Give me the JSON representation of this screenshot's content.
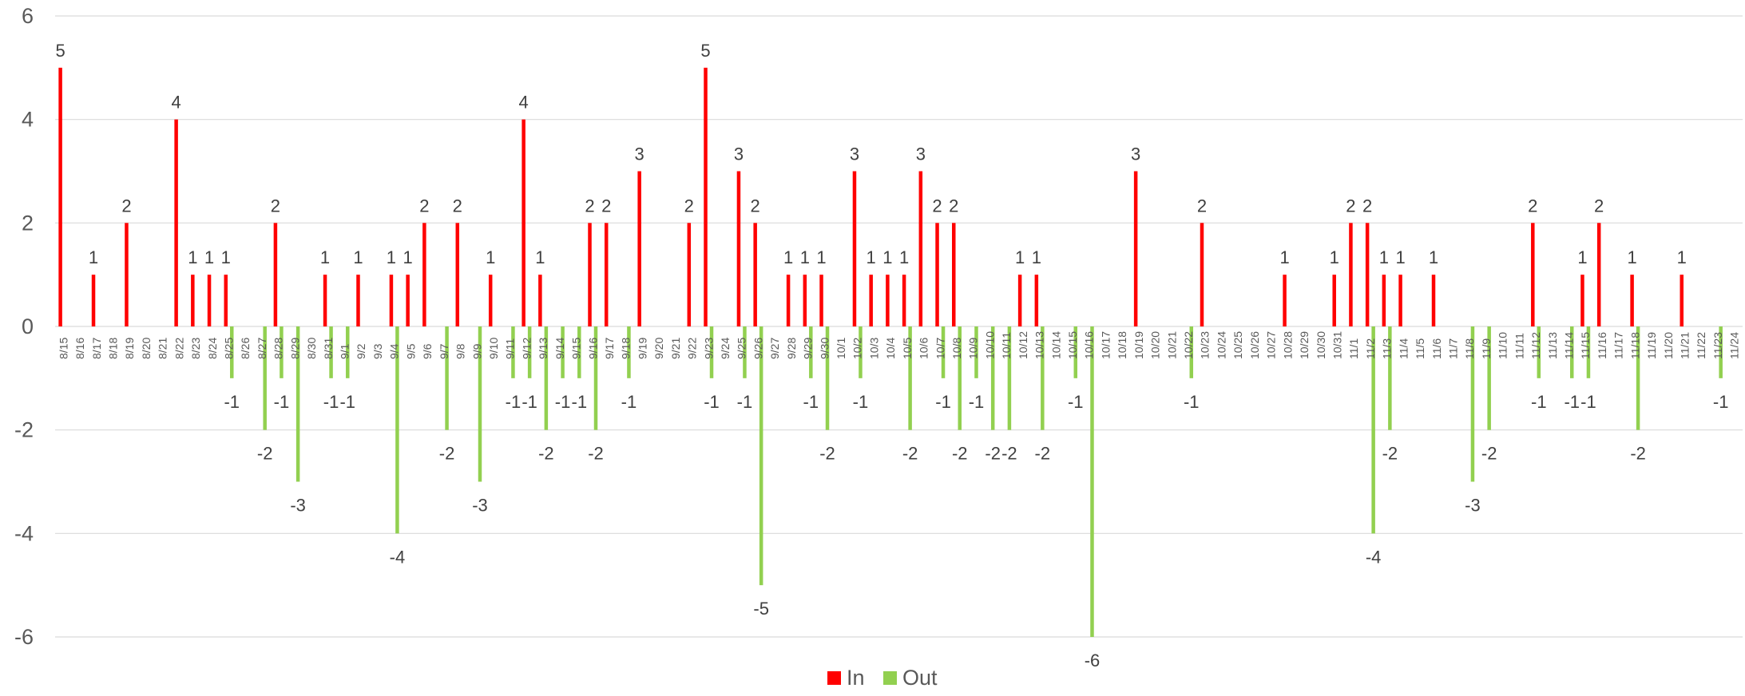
{
  "chart_data": {
    "type": "bar",
    "title": "",
    "xlabel": "",
    "ylabel": "",
    "ylim": [
      -6,
      6
    ],
    "yticks": [
      "6",
      "4",
      "2",
      "0",
      "-2",
      "-4",
      "-6"
    ],
    "grid": true,
    "legend": {
      "placement": "bottom",
      "entries": [
        "In",
        "Out"
      ]
    },
    "categories": [
      "8/15",
      "8/16",
      "8/17",
      "8/18",
      "8/19",
      "8/20",
      "8/21",
      "8/22",
      "8/23",
      "8/24",
      "8/25",
      "8/26",
      "8/27",
      "8/28",
      "8/29",
      "8/30",
      "8/31",
      "9/1",
      "9/2",
      "9/3",
      "9/4",
      "9/5",
      "9/6",
      "9/7",
      "9/8",
      "9/9",
      "9/10",
      "9/11",
      "9/12",
      "9/13",
      "9/14",
      "9/15",
      "9/16",
      "9/17",
      "9/18",
      "9/19",
      "9/20",
      "9/21",
      "9/22",
      "9/23",
      "9/24",
      "9/25",
      "9/26",
      "9/27",
      "9/28",
      "9/29",
      "9/30",
      "10/1",
      "10/2",
      "10/3",
      "10/4",
      "10/5",
      "10/6",
      "10/7",
      "10/8",
      "10/9",
      "10/10",
      "10/11",
      "10/12",
      "10/13",
      "10/14",
      "10/15",
      "10/16",
      "10/17",
      "10/18",
      "10/19",
      "10/20",
      "10/21",
      "10/22",
      "10/23",
      "10/24",
      "10/25",
      "10/26",
      "10/27",
      "10/28",
      "10/29",
      "10/30",
      "10/31",
      "11/1",
      "11/2",
      "11/3",
      "11/4",
      "11/5",
      "11/6",
      "11/7",
      "11/8",
      "11/9",
      "11/10",
      "11/11",
      "11/12",
      "11/13",
      "11/14",
      "11/15",
      "11/16",
      "11/17",
      "11/18",
      "11/19",
      "11/20",
      "11/21",
      "11/22",
      "11/23",
      "11/24"
    ],
    "series": [
      {
        "name": "In",
        "color": "#ff0000",
        "values": [
          5,
          0,
          1,
          0,
          2,
          0,
          0,
          4,
          1,
          1,
          1,
          0,
          0,
          2,
          0,
          0,
          1,
          0,
          1,
          0,
          1,
          1,
          2,
          0,
          2,
          0,
          1,
          0,
          4,
          1,
          0,
          0,
          2,
          2,
          0,
          3,
          0,
          0,
          2,
          5,
          0,
          3,
          2,
          0,
          1,
          1,
          1,
          0,
          3,
          1,
          1,
          1,
          3,
          2,
          2,
          0,
          0,
          0,
          1,
          1,
          0,
          0,
          0,
          0,
          0,
          3,
          0,
          0,
          0,
          2,
          0,
          0,
          0,
          0,
          1,
          0,
          0,
          1,
          2,
          2,
          1,
          1,
          0,
          1,
          0,
          0,
          0,
          0,
          0,
          2,
          0,
          0,
          1,
          2,
          0,
          1,
          0,
          0,
          1,
          0,
          0,
          0
        ]
      },
      {
        "name": "Out",
        "color": "#92d050",
        "values": [
          0,
          0,
          0,
          0,
          0,
          0,
          0,
          0,
          0,
          0,
          -1,
          0,
          -2,
          -1,
          -3,
          0,
          -1,
          -1,
          0,
          0,
          -4,
          0,
          0,
          -2,
          0,
          -3,
          0,
          -1,
          -1,
          -2,
          -1,
          -1,
          -2,
          0,
          -1,
          0,
          0,
          0,
          0,
          -1,
          0,
          -1,
          -5,
          0,
          0,
          -1,
          -2,
          0,
          -1,
          0,
          0,
          -2,
          0,
          -1,
          -2,
          -1,
          -2,
          -2,
          0,
          -2,
          0,
          -1,
          -6,
          0,
          0,
          0,
          0,
          0,
          -1,
          0,
          0,
          0,
          0,
          0,
          0,
          0,
          0,
          0,
          0,
          -4,
          -2,
          0,
          0,
          0,
          0,
          -3,
          -2,
          0,
          0,
          -1,
          0,
          -1,
          -1,
          0,
          0,
          -2,
          0,
          0,
          0,
          0,
          -1,
          0
        ]
      }
    ]
  }
}
